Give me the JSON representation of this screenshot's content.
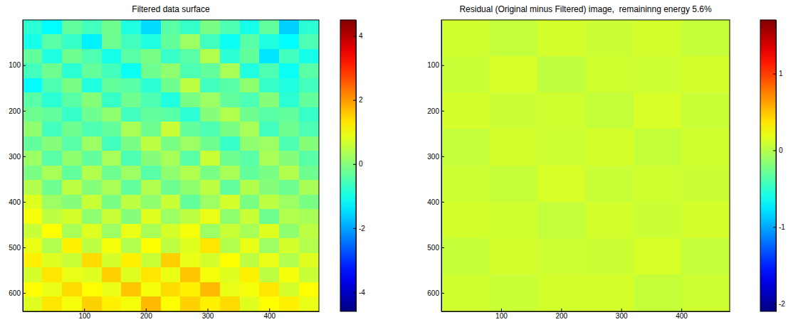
{
  "chart_data": [
    {
      "type": "heatmap",
      "title": "Filtered data surface",
      "x": [
        16,
        48,
        80,
        112,
        144,
        176,
        208,
        240,
        272,
        304,
        336,
        368,
        400,
        432,
        464
      ],
      "y": [
        16,
        48,
        80,
        112,
        144,
        176,
        208,
        240,
        272,
        304,
        336,
        368,
        400,
        432,
        464,
        496,
        528,
        560,
        592,
        624
      ],
      "z": [
        [
          -0.8,
          -1.2,
          -0.3,
          -0.6,
          -0.2,
          -0.9,
          -1.5,
          -0.4,
          -0.7,
          -0.1,
          -0.5,
          -1.0,
          -0.3,
          -1.6,
          -0.8
        ],
        [
          -1.0,
          -0.4,
          -0.7,
          -1.3,
          -0.2,
          -0.6,
          -0.9,
          -0.3,
          0.2,
          -0.6,
          -1.1,
          -0.4,
          -0.9,
          -1.2,
          -0.5
        ],
        [
          -0.3,
          -0.9,
          -0.2,
          -0.5,
          -1.0,
          -0.4,
          -0.1,
          -0.7,
          -0.4,
          0.4,
          -0.8,
          -0.3,
          -1.4,
          -0.6,
          -1.0
        ],
        [
          -0.6,
          -0.2,
          -0.8,
          -0.3,
          -0.6,
          -1.1,
          -0.2,
          0.1,
          -0.5,
          -0.3,
          0.3,
          -0.9,
          -0.5,
          -1.1,
          -0.4
        ],
        [
          -1.2,
          -0.5,
          -0.1,
          -0.9,
          -0.3,
          -0.4,
          -0.8,
          -0.2,
          0.5,
          -0.6,
          -0.4,
          0.1,
          -0.7,
          -0.9,
          -0.6
        ],
        [
          -0.4,
          -0.8,
          -0.4,
          0.0,
          -0.7,
          -0.2,
          -0.5,
          -0.9,
          -0.1,
          0.2,
          -0.3,
          -0.5,
          0.0,
          -0.8,
          -0.3
        ],
        [
          -0.2,
          -0.3,
          -0.7,
          -0.2,
          0.1,
          -0.6,
          -0.3,
          -0.4,
          -0.8,
          0.0,
          0.4,
          -0.2,
          -0.4,
          -0.3,
          -0.7
        ],
        [
          0.1,
          -0.6,
          -0.2,
          -0.5,
          -0.3,
          0.3,
          -0.2,
          0.6,
          -0.3,
          -0.5,
          -0.1,
          0.3,
          -0.6,
          -0.2,
          -0.5
        ],
        [
          -0.3,
          0.0,
          -0.4,
          0.2,
          -0.6,
          -0.1,
          0.5,
          -0.1,
          0.2,
          -0.2,
          -0.7,
          0.1,
          0.2,
          -0.5,
          0.0
        ],
        [
          0.2,
          -0.4,
          0.1,
          -0.3,
          0.3,
          -0.5,
          0.0,
          0.3,
          -0.4,
          0.6,
          -0.2,
          -0.4,
          0.3,
          0.0,
          -0.4
        ],
        [
          -0.1,
          0.3,
          -0.3,
          0.4,
          -0.2,
          0.2,
          -0.4,
          0.1,
          0.4,
          -0.1,
          0.3,
          -0.3,
          -0.1,
          0.4,
          -0.2
        ],
        [
          0.4,
          -0.2,
          0.5,
          0.0,
          0.3,
          -0.3,
          0.4,
          -0.2,
          0.1,
          0.5,
          -0.3,
          0.4,
          0.0,
          -0.2,
          0.3
        ],
        [
          0.8,
          0.2,
          0.0,
          0.6,
          -0.1,
          0.5,
          0.1,
          0.6,
          -0.3,
          0.2,
          0.7,
          -0.1,
          0.5,
          0.2,
          -0.1
        ],
        [
          1.0,
          0.5,
          0.7,
          0.1,
          0.6,
          0.0,
          0.8,
          0.2,
          0.5,
          0.9,
          0.1,
          0.6,
          -0.2,
          0.4,
          0.3
        ],
        [
          0.6,
          1.1,
          0.3,
          0.8,
          0.2,
          0.9,
          0.3,
          0.7,
          1.0,
          0.2,
          0.6,
          0.3,
          0.8,
          0.1,
          0.5
        ],
        [
          0.9,
          0.4,
          1.2,
          0.5,
          1.0,
          0.4,
          1.1,
          0.5,
          0.8,
          1.3,
          0.4,
          0.9,
          0.2,
          0.7,
          0.4
        ],
        [
          1.2,
          0.8,
          0.6,
          1.4,
          0.7,
          1.2,
          0.6,
          1.5,
          0.9,
          0.7,
          1.1,
          0.5,
          0.9,
          0.4,
          0.8
        ],
        [
          0.7,
          1.3,
          0.9,
          0.8,
          1.5,
          0.8,
          1.3,
          0.9,
          1.6,
          1.0,
          0.8,
          1.2,
          0.5,
          1.0,
          0.6
        ],
        [
          1.1,
          0.9,
          1.4,
          1.1,
          0.9,
          1.6,
          1.0,
          1.4,
          1.2,
          1.7,
          0.9,
          1.0,
          1.3,
          0.7,
          1.1
        ],
        [
          0.8,
          1.3,
          1.0,
          1.5,
          1.2,
          1.0,
          1.7,
          1.1,
          1.5,
          1.2,
          1.4,
          0.8,
          1.1,
          1.2,
          0.9
        ]
      ],
      "xlim": [
        0.5,
        480.5
      ],
      "ylim": [
        0.5,
        640.5
      ],
      "xticks": [
        100,
        200,
        300,
        400
      ],
      "yticks": [
        100,
        200,
        300,
        400,
        500,
        600
      ],
      "colorbar": {
        "range": [
          -4.6,
          4.5
        ],
        "ticks": [
          -4,
          -2,
          0,
          2,
          4
        ]
      }
    },
    {
      "type": "heatmap",
      "title": "Residual (Original minus Filtered) image,  remaininng energy 5.6%",
      "x": [
        40,
        120,
        200,
        280,
        360,
        440
      ],
      "y": [
        40,
        120,
        200,
        280,
        360,
        440,
        520,
        600
      ],
      "z": [
        [
          0.1,
          0.05,
          0.12,
          0.08,
          0.11,
          0.06
        ],
        [
          0.07,
          0.13,
          0.04,
          0.1,
          0.09,
          0.12
        ],
        [
          0.12,
          0.08,
          0.1,
          0.06,
          0.13,
          0.07
        ],
        [
          0.05,
          0.11,
          0.09,
          0.12,
          0.06,
          0.1
        ],
        [
          0.09,
          0.06,
          0.13,
          0.07,
          0.1,
          0.08
        ],
        [
          0.11,
          0.1,
          0.05,
          0.11,
          0.08,
          0.12
        ],
        [
          0.06,
          0.12,
          0.09,
          0.08,
          0.13,
          0.05
        ],
        [
          0.1,
          0.07,
          0.11,
          0.12,
          0.06,
          0.09
        ]
      ],
      "xlim": [
        0.5,
        480.5
      ],
      "ylim": [
        0.5,
        640.5
      ],
      "xticks": [
        100,
        200,
        300,
        400
      ],
      "yticks": [
        100,
        200,
        300,
        400,
        500,
        600
      ],
      "colorbar": {
        "range": [
          -2.1,
          1.7
        ],
        "ticks": [
          -2,
          -1,
          0,
          1
        ]
      }
    }
  ]
}
